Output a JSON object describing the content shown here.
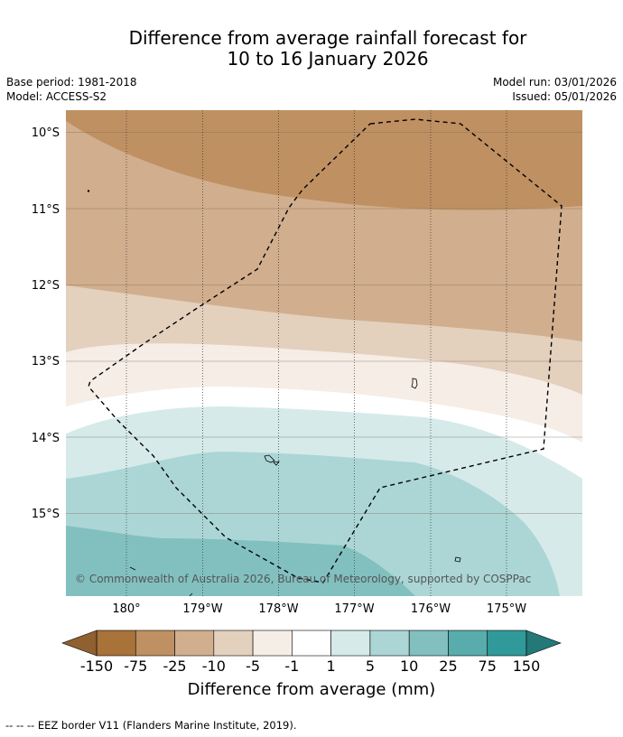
{
  "title": {
    "line1": "Difference from average rainfall forecast for",
    "line2": "10 to 16 January 2026"
  },
  "meta_left": {
    "base_period": "Base period: 1981-2018",
    "model": "Model: ACCESS-S2"
  },
  "meta_right": {
    "model_run": "Model run: 03/01/2026",
    "issued": "Issued: 05/01/2026"
  },
  "map": {
    "lat_labels": [
      "10°S",
      "11°S",
      "12°S",
      "13°S",
      "14°S",
      "15°S"
    ],
    "lon_labels": [
      "180°",
      "179°W",
      "178°W",
      "177°W",
      "176°W",
      "175°W"
    ],
    "copyright": "© Commonwealth of Australia 2026, Bureau of Meteorology, supported by COSPPac"
  },
  "colorbar": {
    "title": "Difference from average (mm)",
    "tick_labels": [
      "-150",
      "-75",
      "-25",
      "-10",
      "-5",
      "-1",
      "1",
      "5",
      "10",
      "25",
      "75",
      "150"
    ],
    "colors": [
      "#a87238",
      "#bf9062",
      "#d1ae8e",
      "#e3d0bd",
      "#f5ede6",
      "#ffffff",
      "#d6eaea",
      "#acd6d6",
      "#82c0c0",
      "#59acac",
      "#309a9a",
      "#2a8585"
    ],
    "under_color": "#8f6030",
    "over_color": "#247878"
  },
  "footer": {
    "legend": "--  --  -- EEZ border V11 (Flanders Marine Institute, 2019)."
  }
}
